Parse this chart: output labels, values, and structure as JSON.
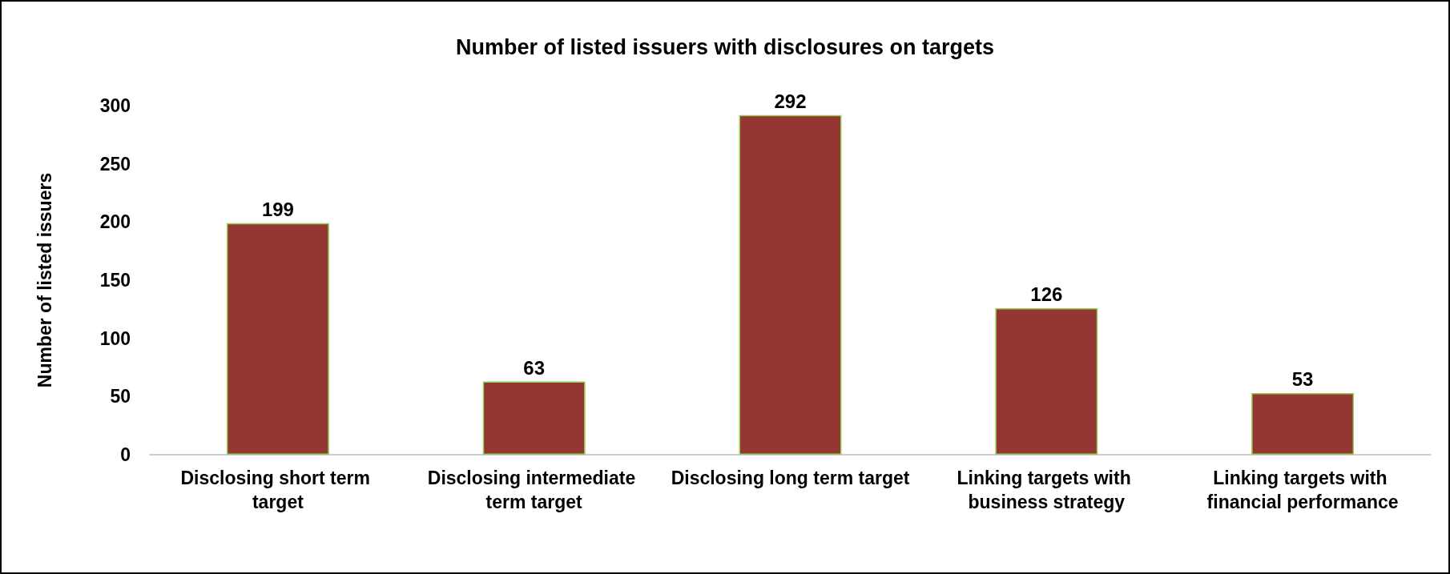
{
  "chart_data": {
    "type": "bar",
    "title": "Number of listed issuers with disclosures on targets",
    "ylabel": "Number of listed issuers",
    "categories": [
      "Disclosing short term target",
      "Disclosing intermediate term target",
      "Disclosing long term target",
      "Linking targets with business strategy",
      "Linking targets with financial performance"
    ],
    "values": [
      199,
      63,
      292,
      126,
      53
    ],
    "color": "#943634",
    "ylim": [
      0,
      300
    ],
    "yticks": [
      0,
      50,
      100,
      150,
      200,
      250,
      300
    ],
    "grid": false,
    "data_labels": true
  }
}
